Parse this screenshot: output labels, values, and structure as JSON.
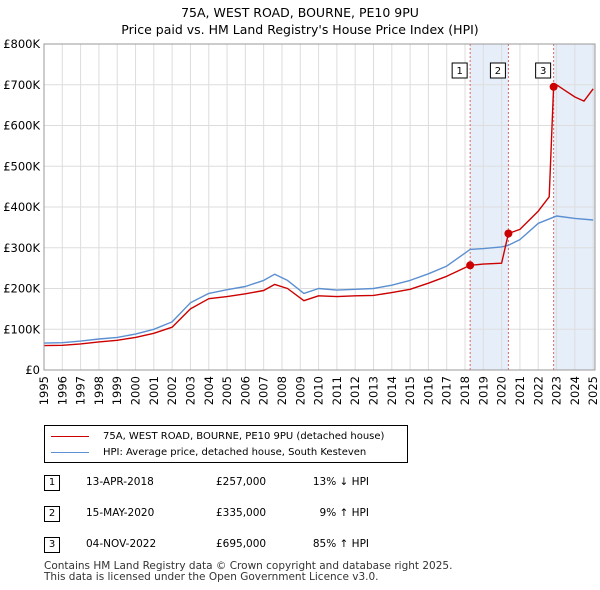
{
  "chart_data": {
    "type": "line",
    "title": "75A, WEST ROAD, BOURNE, PE10 9PU",
    "subtitle": "Price paid vs. HM Land Registry's House Price Index (HPI)",
    "xlabel": "",
    "ylabel": "",
    "xlim": [
      1995,
      2025.1
    ],
    "ylim": [
      0,
      800000
    ],
    "x_ticks": [
      "1995",
      "1996",
      "1997",
      "1998",
      "1999",
      "2000",
      "2001",
      "2002",
      "2003",
      "2004",
      "2005",
      "2006",
      "2007",
      "2008",
      "2009",
      "2010",
      "2011",
      "2012",
      "2013",
      "2014",
      "2015",
      "2016",
      "2017",
      "2018",
      "2019",
      "2020",
      "2021",
      "2022",
      "2023",
      "2024",
      "2025"
    ],
    "y_ticks": [
      {
        "value": 0,
        "label": "£0"
      },
      {
        "value": 100000,
        "label": "£100K"
      },
      {
        "value": 200000,
        "label": "£200K"
      },
      {
        "value": 300000,
        "label": "£300K"
      },
      {
        "value": 400000,
        "label": "£400K"
      },
      {
        "value": 500000,
        "label": "£500K"
      },
      {
        "value": 600000,
        "label": "£600K"
      },
      {
        "value": 700000,
        "label": "£700K"
      },
      {
        "value": 800000,
        "label": "£800K"
      }
    ],
    "grid": true,
    "colors": {
      "property": "#cc0000",
      "hpi": "#5b8fd1",
      "shade": "#e6eefa",
      "vline": "#e06666",
      "grid": "#dddddd"
    },
    "series": [
      {
        "name": "75A, WEST ROAD, BOURNE, PE10 9PU (detached house)",
        "color": "#cc0000",
        "points": [
          [
            1995.0,
            60000
          ],
          [
            1996.0,
            60500
          ],
          [
            1997.0,
            64000
          ],
          [
            1998.0,
            69000
          ],
          [
            1999.0,
            73000
          ],
          [
            2000.0,
            80000
          ],
          [
            2001.0,
            90000
          ],
          [
            2002.0,
            105000
          ],
          [
            2003.0,
            150000
          ],
          [
            2004.0,
            175000
          ],
          [
            2005.0,
            180000
          ],
          [
            2006.0,
            187000
          ],
          [
            2007.0,
            195000
          ],
          [
            2007.6,
            210000
          ],
          [
            2008.3,
            200000
          ],
          [
            2009.2,
            170000
          ],
          [
            2010.0,
            182000
          ],
          [
            2011.0,
            180000
          ],
          [
            2012.0,
            182000
          ],
          [
            2013.0,
            183000
          ],
          [
            2014.0,
            190000
          ],
          [
            2015.0,
            198000
          ],
          [
            2016.0,
            213000
          ],
          [
            2017.0,
            230000
          ],
          [
            2018.28,
            257000
          ],
          [
            2019.0,
            260000
          ],
          [
            2020.0,
            262000
          ],
          [
            2020.37,
            335000
          ],
          [
            2021.0,
            345000
          ],
          [
            2022.0,
            390000
          ],
          [
            2022.6,
            425000
          ],
          [
            2022.84,
            695000
          ],
          [
            2023.0,
            700000
          ],
          [
            2023.5,
            685000
          ],
          [
            2024.0,
            670000
          ],
          [
            2024.5,
            660000
          ],
          [
            2025.0,
            690000
          ]
        ]
      },
      {
        "name": "HPI: Average price, detached house, South Kesteven",
        "color": "#5b8fd1",
        "points": [
          [
            1995.0,
            66000
          ],
          [
            1996.0,
            67000
          ],
          [
            1997.0,
            71000
          ],
          [
            1998.0,
            76000
          ],
          [
            1999.0,
            80000
          ],
          [
            2000.0,
            88000
          ],
          [
            2001.0,
            100000
          ],
          [
            2002.0,
            118000
          ],
          [
            2003.0,
            165000
          ],
          [
            2004.0,
            188000
          ],
          [
            2005.0,
            197000
          ],
          [
            2006.0,
            205000
          ],
          [
            2007.0,
            220000
          ],
          [
            2007.6,
            235000
          ],
          [
            2008.3,
            220000
          ],
          [
            2009.2,
            188000
          ],
          [
            2010.0,
            200000
          ],
          [
            2011.0,
            196000
          ],
          [
            2012.0,
            198000
          ],
          [
            2013.0,
            200000
          ],
          [
            2014.0,
            208000
          ],
          [
            2015.0,
            220000
          ],
          [
            2016.0,
            236000
          ],
          [
            2017.0,
            255000
          ],
          [
            2018.28,
            296000
          ],
          [
            2019.0,
            298000
          ],
          [
            2020.0,
            302000
          ],
          [
            2020.37,
            306000
          ],
          [
            2021.0,
            320000
          ],
          [
            2022.0,
            360000
          ],
          [
            2022.84,
            375000
          ],
          [
            2023.0,
            378000
          ],
          [
            2024.0,
            372000
          ],
          [
            2025.0,
            368000
          ]
        ]
      }
    ],
    "transactions": [
      {
        "num": "1",
        "year": 2018.28,
        "date": "13-APR-2018",
        "price_value": 257000,
        "price": "£257,000",
        "hpi": "13% ↓ HPI"
      },
      {
        "num": "2",
        "year": 2020.37,
        "date": "15-MAY-2020",
        "price_value": 335000,
        "price": "£335,000",
        "hpi": "9% ↑ HPI"
      },
      {
        "num": "3",
        "year": 2022.84,
        "date": "04-NOV-2022",
        "price_value": 695000,
        "price": "£695,000",
        "hpi": "85% ↑ HPI"
      }
    ],
    "shaded_ranges": [
      [
        2018.28,
        2020.37
      ],
      [
        2022.84,
        2025.1
      ]
    ]
  },
  "legend": {
    "property_label": "75A, WEST ROAD, BOURNE, PE10 9PU (detached house)",
    "hpi_label": "HPI: Average price, detached house, South Kesteven"
  },
  "footer": {
    "line1": "Contains HM Land Registry data © Crown copyright and database right 2025.",
    "line2": "This data is licensed under the Open Government Licence v3.0."
  }
}
